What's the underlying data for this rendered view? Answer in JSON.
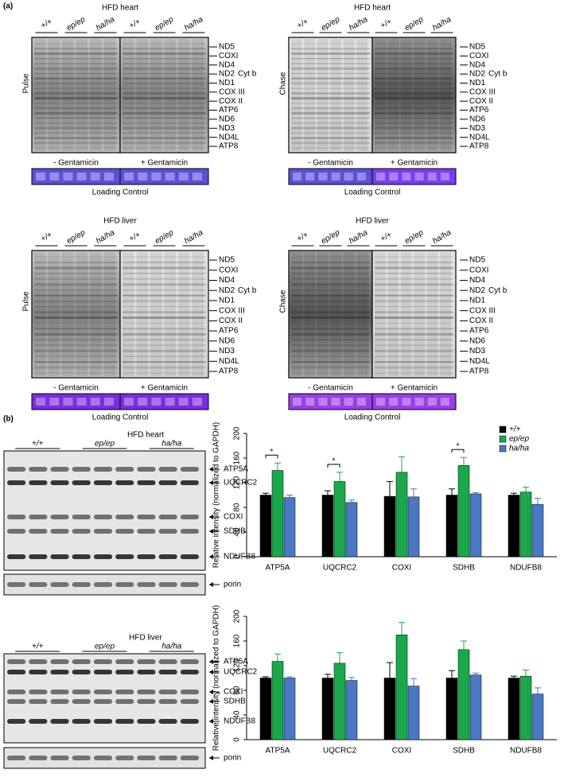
{
  "panel_a": {
    "label": "(a)",
    "gels": [
      {
        "title": "HFD heart",
        "mode": "Pulse",
        "groups": [
          "+/+",
          "ep/ep",
          "ha/ha",
          "+/+",
          "ep/ep",
          "ha/ha"
        ],
        "bands": [
          "ND5",
          "COXI",
          "ND4",
          "ND2",
          "Cyt b",
          "ND1",
          "COX III",
          "COX II",
          "ATP6",
          "ND6",
          "ND3",
          "ND4L",
          "ATP8"
        ],
        "conditions": [
          "- Gentamicin",
          "+ Gentamicin"
        ],
        "loading": "Loading Control"
      },
      {
        "title": "HFD heart",
        "mode": "Chase",
        "groups": [
          "+/+",
          "ep/ep",
          "ha/ha",
          "+/+",
          "ep/ep",
          "ha/ha"
        ],
        "bands": [
          "ND5",
          "COXI",
          "ND4",
          "ND2",
          "Cyt b",
          "ND1",
          "COX III",
          "COX II",
          "ATP6",
          "ND6",
          "ND3",
          "ND4L",
          "ATP8"
        ],
        "conditions": [
          "- Gentamicin",
          "+ Gentamicin"
        ],
        "loading": "Loading Control"
      },
      {
        "title": "HFD liver",
        "mode": "Pulse",
        "groups": [
          "+/+",
          "ep/ep",
          "ha/ha",
          "+/+",
          "ep/ep",
          "ha/ha"
        ],
        "bands": [
          "ND5",
          "COXI",
          "ND4",
          "ND2",
          "Cyt b",
          "ND1",
          "COX III",
          "COX II",
          "ATP6",
          "ND6",
          "ND3",
          "ND4L",
          "ATP8"
        ],
        "conditions": [
          "- Gentamicin",
          "+ Gentamicin"
        ],
        "loading": "Loading Control"
      },
      {
        "title": "HFD liver",
        "mode": "Chase",
        "groups": [
          "+/+",
          "ep/ep",
          "ha/ha",
          "+/+",
          "ep/ep",
          "ha/ha"
        ],
        "bands": [
          "ND5",
          "COXI",
          "ND4",
          "ND2",
          "Cyt b",
          "ND1",
          "COX III",
          "COX II",
          "ATP6",
          "ND6",
          "ND3",
          "ND4L",
          "ATP8"
        ],
        "conditions": [
          "- Gentamicin",
          "+ Gentamicin"
        ],
        "loading": "Loading Control"
      }
    ]
  },
  "panel_b": {
    "label": "(b)",
    "blots": [
      {
        "title": "HFD heart",
        "groups": [
          "+/+",
          "ep/ep",
          "ha/ha"
        ],
        "proteins": [
          "ATP5A",
          "UQCRC2",
          "COXI",
          "SDHB",
          "NDUFB8"
        ],
        "loading": "porin"
      },
      {
        "title": "HFD liver",
        "groups": [
          "+/+",
          "ep/ep",
          "ha/ha"
        ],
        "proteins": [
          "ATP5A",
          "UQCRC2",
          "COXI",
          "SDHB",
          "NDUFB8"
        ],
        "loading": "porin"
      }
    ]
  },
  "chart_data": [
    {
      "type": "bar",
      "y_label": "Relative intensity (normalized to GAPDH)",
      "categories": [
        "ATP5A",
        "UQCRC2",
        "COXI",
        "SDHB",
        "NDUFB8"
      ],
      "series": [
        {
          "name": "+/+",
          "color": "#000000",
          "values": [
            100,
            100,
            98,
            100,
            100
          ],
          "errors": [
            3,
            7,
            24,
            10,
            3
          ]
        },
        {
          "name": "ep/ep",
          "color": "#1aa84a",
          "values": [
            140,
            122,
            137,
            148,
            105
          ],
          "errors": [
            12,
            15,
            25,
            13,
            8
          ]
        },
        {
          "name": "ha/ha",
          "color": "#4a78c2",
          "values": [
            96,
            88,
            97,
            102,
            85
          ],
          "errors": [
            4,
            4,
            13,
            2,
            10
          ]
        }
      ],
      "ylim": [
        0,
        200
      ],
      "yticks": [
        0,
        40,
        80,
        120,
        160,
        200
      ],
      "legend": "top-right",
      "annotations": [
        {
          "text": "*",
          "category": "ATP5A"
        },
        {
          "text": "*",
          "category": "UQCRC2"
        },
        {
          "text": "*",
          "category": "SDHB"
        }
      ]
    },
    {
      "type": "bar",
      "y_label": "Relative intensity (normalized to GAPDH)",
      "categories": [
        "ATP5A",
        "UQCRC2",
        "COXI",
        "SDHB",
        "NDUFB8"
      ],
      "series": [
        {
          "name": "+/+",
          "color": "#000000",
          "values": [
            100,
            100,
            100,
            100,
            100
          ],
          "errors": [
            2,
            6,
            25,
            12,
            3
          ]
        },
        {
          "name": "ep/ep",
          "color": "#1aa84a",
          "values": [
            127,
            124,
            170,
            146,
            103
          ],
          "errors": [
            12,
            17,
            20,
            14,
            10
          ]
        },
        {
          "name": "ha/ha",
          "color": "#4a78c2",
          "values": [
            100,
            96,
            87,
            105,
            74
          ],
          "errors": [
            2,
            5,
            12,
            3,
            10
          ]
        }
      ],
      "ylim": [
        0,
        200
      ],
      "yticks": [
        0,
        40,
        80,
        120,
        160,
        200
      ],
      "legend": "none"
    }
  ]
}
